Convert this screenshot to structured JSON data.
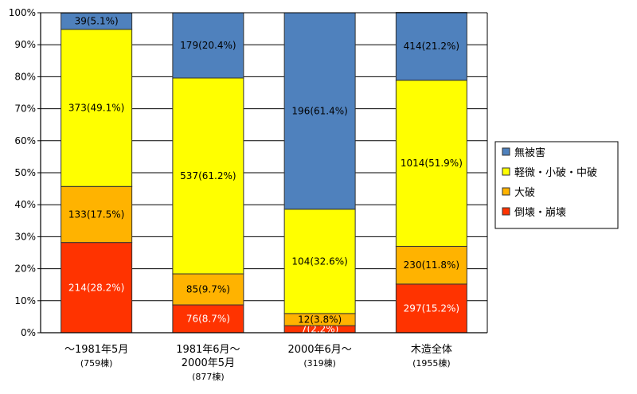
{
  "chart_data": {
    "type": "bar",
    "stacked": true,
    "percent": true,
    "ylim": [
      0,
      100
    ],
    "y_ticks": [
      "0%",
      "10%",
      "20%",
      "30%",
      "40%",
      "50%",
      "60%",
      "70%",
      "80%",
      "90%",
      "100%"
    ],
    "grid": true,
    "legend_position": "right",
    "categories": [
      {
        "line1": "～1981年5月",
        "line2": "(759棟)",
        "line3": ""
      },
      {
        "line1": "1981年6月～",
        "line2": "2000年5月",
        "line3": "(877棟)"
      },
      {
        "line1": "2000年6月～",
        "line2": "(319棟)",
        "line3": ""
      },
      {
        "line1": "木造全体",
        "line2": "(1955棟)",
        "line3": ""
      }
    ],
    "series": [
      {
        "name": "倒壊・崩壊",
        "color": "#ff3300",
        "label_color": "#ffffff",
        "values": [
          28.2,
          8.7,
          2.2,
          15.2
        ],
        "labels": [
          "214(28.2%)",
          "76(8.7%)",
          "7(2.2%)",
          "297(15.2%)"
        ]
      },
      {
        "name": "大破",
        "color": "#ffb300",
        "label_color": "#000000",
        "values": [
          17.5,
          9.7,
          3.8,
          11.8
        ],
        "labels": [
          "133(17.5%)",
          "85(9.7%)",
          "12(3.8%)",
          "230(11.8%)"
        ]
      },
      {
        "name": "軽微・小破・中破",
        "color": "#ffff00",
        "label_color": "#000000",
        "values": [
          49.1,
          61.2,
          32.6,
          51.9
        ],
        "labels": [
          "373(49.1%)",
          "537(61.2%)",
          "104(32.6%)",
          "1014(51.9%)"
        ]
      },
      {
        "name": "無被害",
        "color": "#4f81bd",
        "label_color": "#000000",
        "values": [
          5.1,
          20.4,
          61.4,
          21.2
        ],
        "labels": [
          "39(5.1%)",
          "179(20.4%)",
          "196(61.4%)",
          "414(21.2%)"
        ]
      }
    ],
    "legend_order": [
      "無被害",
      "軽微・小破・中破",
      "大破",
      "倒壊・崩壊"
    ]
  }
}
